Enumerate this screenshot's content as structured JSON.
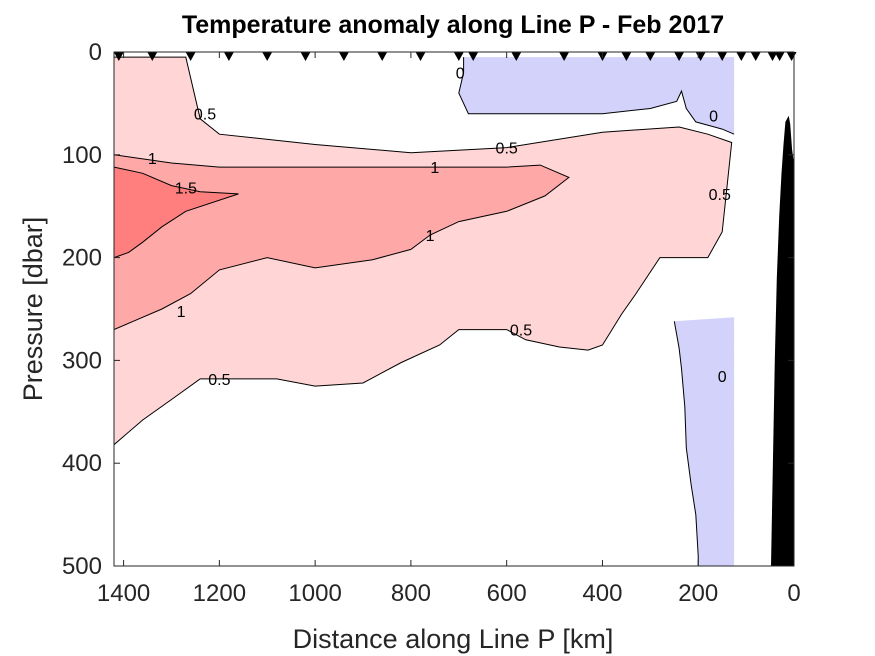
{
  "chart_data": {
    "type": "contour",
    "title": "Temperature anomaly along Line P - Feb 2017",
    "xlabel": "Distance along Line P [km]",
    "ylabel": "Pressure [dbar]",
    "xlim": [
      1420,
      0
    ],
    "ylim": [
      0,
      500
    ],
    "x_reversed": true,
    "y_reversed": true,
    "x_ticks": [
      1400,
      1200,
      1000,
      800,
      600,
      400,
      200,
      0
    ],
    "y_ticks": [
      0,
      100,
      200,
      300,
      400,
      500
    ],
    "contour_levels": [
      0,
      0.5,
      1,
      1.5
    ],
    "level_colors": {
      "neg": "#d2d2fb",
      "0.5": "#ffd5d5",
      "1": "#ffa8a8",
      "1.5": "#ff7f7f",
      "land": "#000000",
      "line": "#000000"
    },
    "contour_labels": [
      {
        "text": "0.5",
        "x": 1230,
        "y": 60
      },
      {
        "text": "0.5",
        "x": 600,
        "y": 93
      },
      {
        "text": "0.5",
        "x": 1200,
        "y": 318
      },
      {
        "text": "0.5",
        "x": 570,
        "y": 270
      },
      {
        "text": "0.5",
        "x": 155,
        "y": 138
      },
      {
        "text": "1",
        "x": 1340,
        "y": 103
      },
      {
        "text": "1",
        "x": 750,
        "y": 112
      },
      {
        "text": "1",
        "x": 760,
        "y": 178
      },
      {
        "text": "1",
        "x": 1280,
        "y": 252
      },
      {
        "text": "1.5",
        "x": 1270,
        "y": 132
      },
      {
        "text": "0",
        "x": 697,
        "y": 20
      },
      {
        "text": "0",
        "x": 168,
        "y": 62
      },
      {
        "text": "0",
        "x": 150,
        "y": 315
      }
    ],
    "station_markers_km": [
      1410,
      1340,
      1260,
      1180,
      1100,
      1020,
      940,
      860,
      780,
      700,
      670,
      580,
      480,
      400,
      350,
      300,
      240,
      195,
      150,
      110,
      80,
      45,
      30,
      5
    ]
  }
}
